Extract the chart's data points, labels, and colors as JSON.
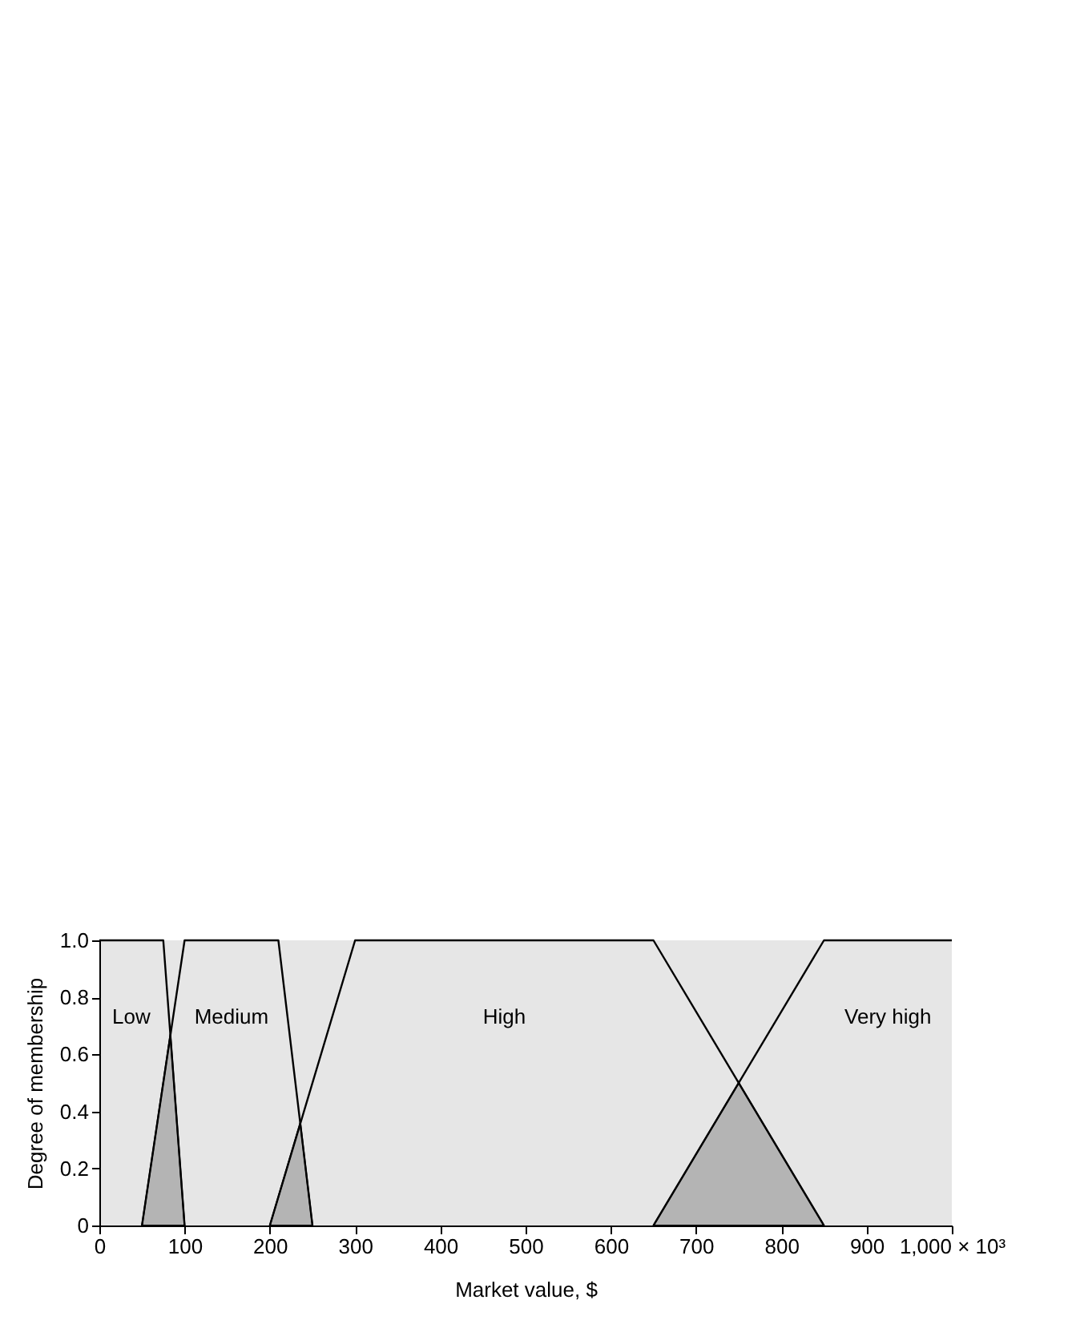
{
  "chart_data": {
    "type": "line",
    "xlabel": "Market value, $",
    "ylabel": "Degree of membership",
    "xlim": [
      0,
      1000
    ],
    "ylim": [
      0,
      1
    ],
    "xticks": [
      0,
      100,
      200,
      300,
      400,
      500,
      600,
      700,
      800,
      900,
      {
        "value": 1000,
        "label": "1,000 × 10³"
      }
    ],
    "yticks": [
      0,
      0.2,
      0.4,
      0.6,
      0.8,
      {
        "value": 1,
        "label": "1.0"
      }
    ],
    "grid": false,
    "marker": "none",
    "line_style": "solid",
    "series": [
      {
        "type": "area",
        "color": "#b4b4b4",
        "x": [
          50,
          83.3,
          100
        ],
        "values": [
          0,
          0.67,
          0
        ]
      },
      {
        "type": "area",
        "color": "#b4b4b4",
        "x": [
          200,
          235.7,
          250
        ],
        "values": [
          0,
          0.36,
          0
        ]
      },
      {
        "type": "area",
        "color": "#b4b4b4",
        "x": [
          650,
          750,
          850
        ],
        "values": [
          0,
          0.5,
          0
        ]
      },
      {
        "color": "#000000",
        "x": [
          0,
          75,
          100
        ],
        "values": [
          1,
          1,
          0
        ]
      },
      {
        "color": "#000000",
        "x": [
          50,
          100,
          210,
          250
        ],
        "values": [
          0,
          1,
          1,
          0
        ]
      },
      {
        "color": "#000000",
        "x": [
          200,
          300,
          650,
          850
        ],
        "values": [
          0,
          1,
          1,
          0
        ]
      },
      {
        "color": "#000000",
        "x": [
          650,
          850,
          1000
        ],
        "values": [
          0,
          1,
          1
        ]
      }
    ],
    "annotations": [
      "Low",
      "Medium",
      "High",
      "Very high"
    ]
  }
}
